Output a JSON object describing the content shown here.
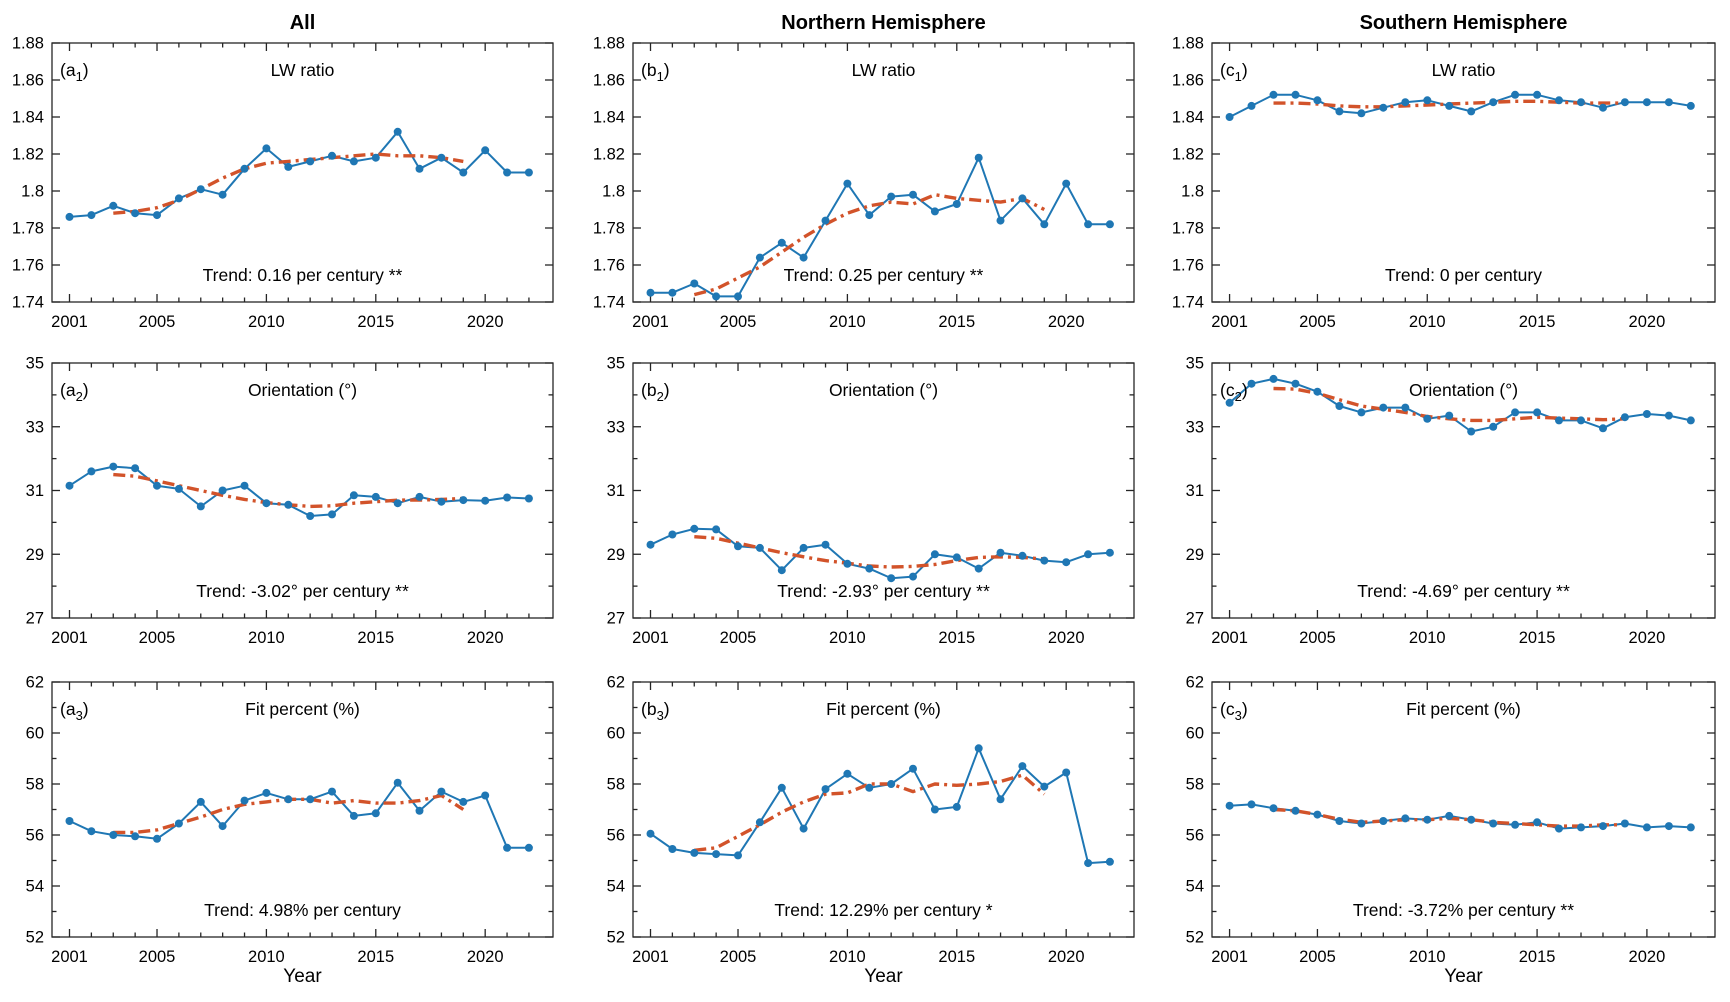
{
  "figure": {
    "column_titles": [
      "All",
      "Northern Hemisphere",
      "Southern Hemisphere"
    ],
    "x_axis_label": "Year",
    "colors": {
      "annual_line": "#1f77b4",
      "trend_line": "#d2532a",
      "axis": "#252525",
      "text": "#000000"
    }
  },
  "chart_data": {
    "type": "line",
    "x_years": [
      2001,
      2002,
      2003,
      2004,
      2005,
      2006,
      2007,
      2008,
      2009,
      2010,
      2011,
      2012,
      2013,
      2014,
      2015,
      2016,
      2017,
      2018,
      2019,
      2020,
      2021,
      2022
    ],
    "x_major_ticks": [
      2001,
      2005,
      2010,
      2015,
      2020
    ],
    "xlim": [
      2000.2,
      2023.1
    ],
    "smoothed_x_start": 2003,
    "series_names": [
      "annual value",
      "smoothed trend"
    ],
    "panels": [
      {
        "id": "a1",
        "row": 0,
        "col": 0,
        "tag_letter": "a",
        "tag_sub": "1",
        "label": "LW ratio",
        "trend_label": "Trend: 0.16 per century **",
        "ylim": [
          1.74,
          1.88
        ],
        "yticks": [
          1.74,
          1.76,
          1.78,
          1.8,
          1.82,
          1.84,
          1.86,
          1.88
        ],
        "ytick_labels": [
          "1.74",
          "1.76",
          "1.78",
          "1.8",
          "1.82",
          "1.84",
          "1.86",
          "1.88"
        ],
        "yminor": [],
        "values": [
          1.786,
          1.787,
          1.792,
          1.788,
          1.787,
          1.796,
          1.801,
          1.798,
          1.812,
          1.823,
          1.813,
          1.816,
          1.819,
          1.816,
          1.818,
          1.832,
          1.812,
          1.818,
          1.81,
          1.822,
          1.81,
          1.81
        ],
        "smoothed": [
          1.788,
          1.789,
          1.791,
          1.795,
          1.801,
          1.807,
          1.812,
          1.815,
          1.816,
          1.817,
          1.818,
          1.819,
          1.82,
          1.819,
          1.819,
          1.818,
          1.816
        ]
      },
      {
        "id": "b1",
        "row": 0,
        "col": 1,
        "tag_letter": "b",
        "tag_sub": "1",
        "label": "LW ratio",
        "trend_label": "Trend: 0.25 per century **",
        "ylim": [
          1.74,
          1.88
        ],
        "yticks": [
          1.74,
          1.76,
          1.78,
          1.8,
          1.82,
          1.84,
          1.86,
          1.88
        ],
        "ytick_labels": [
          "1.74",
          "1.76",
          "1.78",
          "1.8",
          "1.82",
          "1.84",
          "1.86",
          "1.88"
        ],
        "yminor": [],
        "values": [
          1.745,
          1.745,
          1.75,
          1.743,
          1.743,
          1.764,
          1.772,
          1.764,
          1.784,
          1.804,
          1.787,
          1.797,
          1.798,
          1.789,
          1.793,
          1.818,
          1.784,
          1.796,
          1.782,
          1.804,
          1.782,
          1.782
        ],
        "smoothed": [
          1.744,
          1.747,
          1.753,
          1.759,
          1.767,
          1.775,
          1.782,
          1.788,
          1.792,
          1.794,
          1.793,
          1.798,
          1.796,
          1.795,
          1.794,
          1.796,
          1.79
        ]
      },
      {
        "id": "c1",
        "row": 0,
        "col": 2,
        "tag_letter": "c",
        "tag_sub": "1",
        "label": "LW ratio",
        "trend_label": "Trend: 0 per century",
        "ylim": [
          1.74,
          1.88
        ],
        "yticks": [
          1.74,
          1.76,
          1.78,
          1.8,
          1.82,
          1.84,
          1.86,
          1.88
        ],
        "ytick_labels": [
          "1.74",
          "1.76",
          "1.78",
          "1.8",
          "1.82",
          "1.84",
          "1.86",
          "1.88"
        ],
        "yminor": [],
        "values": [
          1.84,
          1.846,
          1.852,
          1.852,
          1.849,
          1.843,
          1.842,
          1.845,
          1.848,
          1.849,
          1.846,
          1.843,
          1.848,
          1.852,
          1.852,
          1.849,
          1.848,
          1.845,
          1.848,
          1.848,
          1.848,
          1.846
        ],
        "smoothed": [
          1.8475,
          1.8475,
          1.847,
          1.846,
          1.8455,
          1.8455,
          1.846,
          1.8465,
          1.847,
          1.8475,
          1.848,
          1.8485,
          1.8485,
          1.848,
          1.8475,
          1.8475,
          1.8475
        ]
      },
      {
        "id": "a2",
        "row": 1,
        "col": 0,
        "tag_letter": "a",
        "tag_sub": "2",
        "label": "Orientation (°)",
        "trend_label": "Trend: -3.02° per century **",
        "ylim": [
          27,
          35
        ],
        "yticks": [
          27,
          29,
          31,
          33,
          35
        ],
        "ytick_labels": [
          "27",
          "29",
          "31",
          "33",
          "35"
        ],
        "yminor": [
          28,
          30,
          32,
          34
        ],
        "values": [
          31.15,
          31.6,
          31.75,
          31.7,
          31.15,
          31.05,
          30.5,
          31.0,
          31.15,
          30.6,
          30.55,
          30.2,
          30.25,
          30.85,
          30.8,
          30.6,
          30.8,
          30.65,
          30.7,
          30.68,
          30.78,
          30.75
        ],
        "smoothed": [
          31.5,
          31.45,
          31.3,
          31.15,
          31.0,
          30.85,
          30.72,
          30.62,
          30.55,
          30.5,
          30.52,
          30.6,
          30.65,
          30.7,
          30.7,
          30.72,
          30.75
        ]
      },
      {
        "id": "b2",
        "row": 1,
        "col": 1,
        "tag_letter": "b",
        "tag_sub": "2",
        "label": "Orientation (°)",
        "trend_label": "Trend: -2.93° per century **",
        "ylim": [
          27,
          35
        ],
        "yticks": [
          27,
          29,
          31,
          33,
          35
        ],
        "ytick_labels": [
          "27",
          "29",
          "31",
          "33",
          "35"
        ],
        "yminor": [
          28,
          30,
          32,
          34
        ],
        "values": [
          29.3,
          29.62,
          29.8,
          29.78,
          29.25,
          29.2,
          28.5,
          29.2,
          29.3,
          28.7,
          28.55,
          28.25,
          28.3,
          29.0,
          28.9,
          28.55,
          29.05,
          28.95,
          28.8,
          28.75,
          29.0,
          29.05
        ],
        "smoothed": [
          29.55,
          29.5,
          29.35,
          29.2,
          29.05,
          28.92,
          28.8,
          28.72,
          28.63,
          28.6,
          28.62,
          28.68,
          28.8,
          28.9,
          28.92,
          28.9,
          28.85
        ]
      },
      {
        "id": "c2",
        "row": 1,
        "col": 2,
        "tag_letter": "c",
        "tag_sub": "2",
        "label": "Orientation (°)",
        "trend_label": "Trend: -4.69° per century **",
        "ylim": [
          27,
          35
        ],
        "yticks": [
          27,
          29,
          31,
          33,
          35
        ],
        "ytick_labels": [
          "27",
          "29",
          "31",
          "33",
          "35"
        ],
        "yminor": [
          28,
          30,
          32,
          34
        ],
        "values": [
          33.75,
          34.35,
          34.5,
          34.35,
          34.1,
          33.65,
          33.45,
          33.6,
          33.6,
          33.25,
          33.35,
          32.85,
          33.0,
          33.45,
          33.45,
          33.2,
          33.2,
          32.95,
          33.3,
          33.4,
          33.35,
          33.2
        ],
        "smoothed": [
          34.2,
          34.18,
          34.05,
          33.85,
          33.65,
          33.55,
          33.45,
          33.32,
          33.25,
          33.2,
          33.2,
          33.25,
          33.3,
          33.27,
          33.25,
          33.22,
          33.25
        ]
      },
      {
        "id": "a3",
        "row": 2,
        "col": 0,
        "tag_letter": "a",
        "tag_sub": "3",
        "label": "Fit percent (%)",
        "trend_label": "Trend: 4.98% per century",
        "ylim": [
          52,
          62
        ],
        "yticks": [
          52,
          54,
          56,
          58,
          60,
          62
        ],
        "ytick_labels": [
          "52",
          "54",
          "56",
          "58",
          "60",
          "62"
        ],
        "yminor": [
          53,
          55,
          57,
          59,
          61
        ],
        "values": [
          56.55,
          56.15,
          56.0,
          55.95,
          55.85,
          56.45,
          57.3,
          56.35,
          57.35,
          57.65,
          57.4,
          57.4,
          57.7,
          56.75,
          56.85,
          58.05,
          56.95,
          57.7,
          57.3,
          57.55,
          55.5,
          55.5
        ],
        "smoothed": [
          56.1,
          56.1,
          56.2,
          56.45,
          56.7,
          57.0,
          57.2,
          57.3,
          57.4,
          57.4,
          57.25,
          57.35,
          57.25,
          57.25,
          57.35,
          57.55,
          57.0
        ]
      },
      {
        "id": "b3",
        "row": 2,
        "col": 1,
        "tag_letter": "b",
        "tag_sub": "3",
        "label": "Fit percent (%)",
        "trend_label": "Trend: 12.29% per century *",
        "ylim": [
          52,
          62
        ],
        "yticks": [
          52,
          54,
          56,
          58,
          60,
          62
        ],
        "ytick_labels": [
          "52",
          "54",
          "56",
          "58",
          "60",
          "62"
        ],
        "yminor": [
          53,
          55,
          57,
          59,
          61
        ],
        "values": [
          56.05,
          55.45,
          55.3,
          55.25,
          55.2,
          56.5,
          57.85,
          56.25,
          57.8,
          58.4,
          57.85,
          58.0,
          58.6,
          57.0,
          57.1,
          59.4,
          57.4,
          58.7,
          57.9,
          58.45,
          54.9,
          54.95
        ],
        "smoothed": [
          55.4,
          55.5,
          55.95,
          56.4,
          56.9,
          57.3,
          57.6,
          57.65,
          58.0,
          58.0,
          57.7,
          58.0,
          57.95,
          58.0,
          58.1,
          58.35,
          57.6
        ]
      },
      {
        "id": "c3",
        "row": 2,
        "col": 2,
        "tag_letter": "c",
        "tag_sub": "3",
        "label": "Fit percent (%)",
        "trend_label": "Trend: -3.72% per century **",
        "ylim": [
          52,
          62
        ],
        "yticks": [
          52,
          54,
          56,
          58,
          60,
          62
        ],
        "ytick_labels": [
          "52",
          "54",
          "56",
          "58",
          "60",
          "62"
        ],
        "yminor": [
          53,
          55,
          57,
          59,
          61
        ],
        "values": [
          57.15,
          57.2,
          57.05,
          56.95,
          56.8,
          56.55,
          56.45,
          56.55,
          56.65,
          56.6,
          56.75,
          56.6,
          56.45,
          56.4,
          56.5,
          56.25,
          56.3,
          56.35,
          56.45,
          56.3,
          56.35,
          56.3
        ],
        "smoothed": [
          57.0,
          56.95,
          56.8,
          56.62,
          56.5,
          56.55,
          56.6,
          56.6,
          56.65,
          56.6,
          56.5,
          56.45,
          56.4,
          56.35,
          56.35,
          56.4,
          56.4
        ]
      }
    ]
  }
}
